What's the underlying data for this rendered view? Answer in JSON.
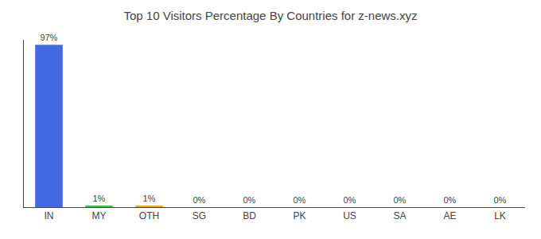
{
  "chart_data": {
    "type": "bar",
    "title": "Top 10 Visitors Percentage By Countries for z-news.xyz",
    "categories": [
      "IN",
      "MY",
      "OTH",
      "SG",
      "BD",
      "PK",
      "US",
      "SA",
      "AE",
      "LK"
    ],
    "values": [
      97,
      1,
      1,
      0,
      0,
      0,
      0,
      0,
      0,
      0
    ],
    "value_labels": [
      "97%",
      "1%",
      "1%",
      "0%",
      "0%",
      "0%",
      "0%",
      "0%",
      "0%",
      "0%"
    ],
    "colors": [
      "#4169e1",
      "#32cd32",
      "#ffa500",
      "#4169e1",
      "#4169e1",
      "#4169e1",
      "#4169e1",
      "#4169e1",
      "#4169e1",
      "#4169e1"
    ],
    "ylim": [
      0,
      100
    ],
    "data_labels": true,
    "tick_labels": "x",
    "grid": false
  }
}
